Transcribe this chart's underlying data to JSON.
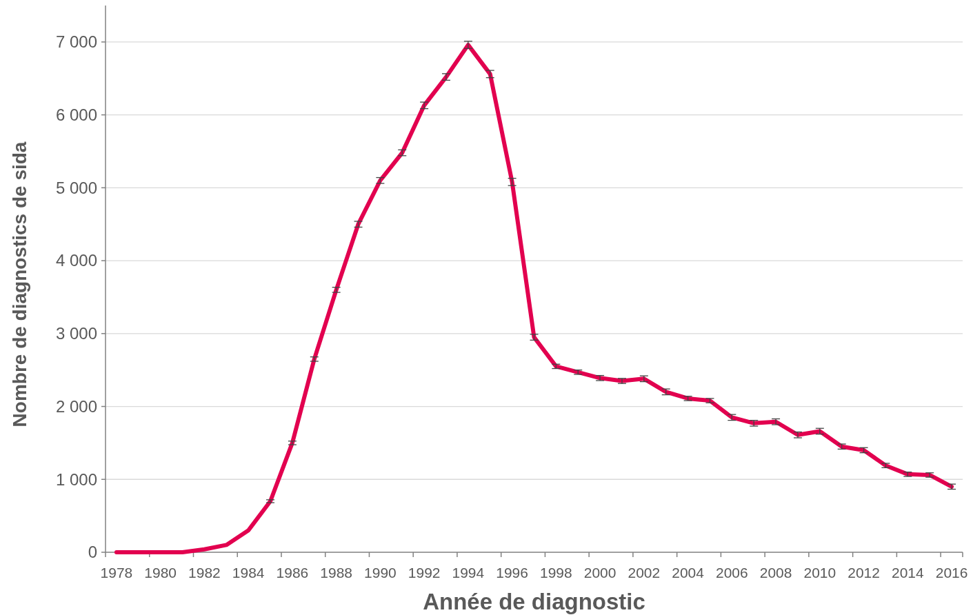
{
  "chart_data": {
    "type": "line",
    "xlabel": "Année de diagnostic",
    "ylabel": "Nombre de diagnostics de sida",
    "categories": [
      "1978",
      null,
      "1980",
      null,
      "1982",
      null,
      "1984",
      null,
      "1986",
      null,
      "1988",
      null,
      "1990",
      null,
      "1992",
      null,
      "1994",
      null,
      "1996",
      null,
      "1998",
      null,
      "2000",
      null,
      "2002",
      null,
      "2004",
      null,
      "2006",
      null,
      "2008",
      null,
      "2010",
      null,
      "2012",
      null,
      "2014",
      null,
      "2016"
    ],
    "series": [
      {
        "color": "#e2004f",
        "values": [
          0,
          0,
          0,
          0,
          40,
          100,
          300,
          700,
          1500,
          2650,
          3600,
          4500,
          5100,
          5480,
          6130,
          6520,
          6960,
          6560,
          5080,
          2950,
          2550,
          2470,
          2390,
          2350,
          2380,
          2200,
          2110,
          2080,
          1850,
          1770,
          1790,
          1610,
          1660,
          1450,
          1400,
          1190,
          1070,
          1060,
          900
        ],
        "errors": [
          null,
          null,
          null,
          null,
          null,
          null,
          null,
          20,
          25,
          30,
          35,
          40,
          40,
          40,
          45,
          45,
          50,
          50,
          50,
          40,
          30,
          30,
          35,
          35,
          40,
          40,
          30,
          30,
          40,
          40,
          40,
          40,
          40,
          35,
          35,
          30,
          30,
          30,
          35
        ]
      }
    ],
    "ylim": [
      0,
      7500
    ],
    "yticks": [
      0,
      {
        "value": 1000,
        "label": "1 000"
      },
      {
        "value": 2000,
        "label": "2 000"
      },
      {
        "value": 3000,
        "label": "3 000"
      },
      {
        "value": 4000,
        "label": "4 000"
      },
      {
        "value": 5000,
        "label": "5 000"
      },
      {
        "value": 6000,
        "label": "6 000"
      },
      {
        "value": 7000,
        "label": "7 000"
      }
    ],
    "grid": "y",
    "marker": "none",
    "line_style": "solid"
  }
}
